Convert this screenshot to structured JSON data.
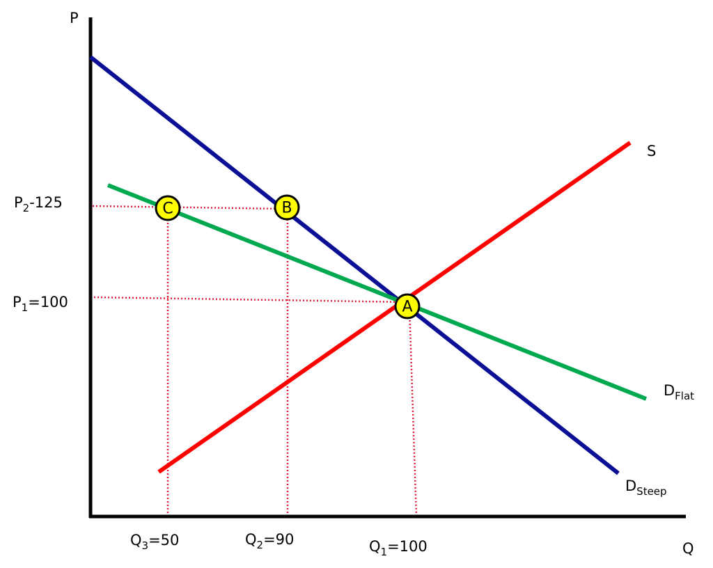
{
  "axes": {
    "y_label": "P",
    "x_label": "Q"
  },
  "curves": {
    "supply": "S",
    "demand_flat": {
      "main": "D",
      "sub": "Flat"
    },
    "demand_steep": {
      "main": "D",
      "sub": "Steep"
    }
  },
  "price_labels": [
    {
      "main": "P",
      "sub": "2",
      "rest": "-125"
    },
    {
      "main": "P",
      "sub": "1",
      "rest": "=100"
    }
  ],
  "quantity_labels": [
    {
      "main": "Q",
      "sub": "3",
      "rest": "=50"
    },
    {
      "main": "Q",
      "sub": "2",
      "rest": "=90"
    },
    {
      "main": "Q",
      "sub": "1",
      "rest": "=100"
    }
  ],
  "points": [
    "C",
    "B",
    "A"
  ]
}
